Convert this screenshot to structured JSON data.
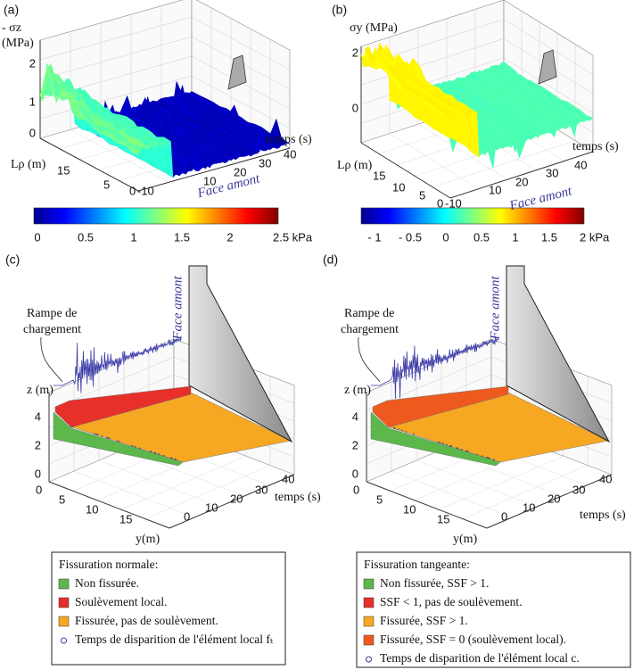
{
  "panel_a": {
    "label": "(a)",
    "z_axis_label": [
      "- σz",
      "(MPa)"
    ],
    "z_ticks": [
      "0",
      "1",
      "2"
    ],
    "y_axis_label": "Lρ (m)",
    "y_ticks": [
      "15",
      "5",
      "0"
    ],
    "x_axis_label": "temps (s)",
    "x_ticks": [
      "-10",
      "10",
      "20",
      "30",
      "40"
    ],
    "face_label": "Face amont",
    "colorbar_ticks": [
      "0",
      "0.5",
      "1",
      "1.5",
      "2",
      "2.5 kPa"
    ]
  },
  "panel_b": {
    "label": "(b)",
    "z_axis_label": "σy (MPa)",
    "z_ticks": [
      "0",
      "2"
    ],
    "y_axis_label": "Lρ (m)",
    "y_ticks": [
      "15",
      "10",
      "5",
      "0"
    ],
    "x_axis_label": "temps (s)",
    "x_ticks": [
      "-10",
      "10",
      "20",
      "30",
      "40"
    ],
    "face_label": "Face amont",
    "colorbar_ticks": [
      "- 1",
      "- 0.5",
      "0",
      "0.5",
      "1",
      "1.5",
      "2 kPa"
    ]
  },
  "panel_c": {
    "label": "(c)",
    "annotation": [
      "Rampe de",
      "chargement"
    ],
    "face_label": "Face amont",
    "z_axis_label": "z (m)",
    "z_ticks": [
      "4",
      "2",
      "0"
    ],
    "y_ticks": [
      "0",
      "5",
      "10",
      "15"
    ],
    "y_axis_label": "y(m)",
    "x_ticks": [
      "0",
      "10",
      "20",
      "30",
      "40"
    ],
    "x_axis_label": "temps (s)"
  },
  "panel_d": {
    "label": "(d)",
    "annotation": [
      "Rampe de",
      "chargement"
    ],
    "face_label": "Face amont",
    "z_axis_label": "z (m)",
    "z_ticks": [
      "4",
      "2",
      "0"
    ],
    "y_ticks": [
      "0",
      "5",
      "10",
      "15"
    ],
    "y_axis_label": "y(m)",
    "x_ticks": [
      "0",
      "10",
      "20",
      "30",
      "40"
    ],
    "x_axis_label": "temps (s)"
  },
  "legend_c": {
    "title": "Fissuration normale:",
    "items": [
      "Non fissurée.",
      "Soulèvement local.",
      "Fissurée, pas de soulèvement.",
      "Temps de disparition de l'élément local fₜ"
    ]
  },
  "legend_d": {
    "title": "Fissuration tangeante:",
    "items": [
      "Non fissurée, SSF > 1.",
      "SSF < 1, pas de soulèvement.",
      "Fissurée, SSF > 1.",
      "Fissurée, SSF = 0 (soulèvement local).",
      "Temps de disparition de l'élément local c."
    ]
  }
}
